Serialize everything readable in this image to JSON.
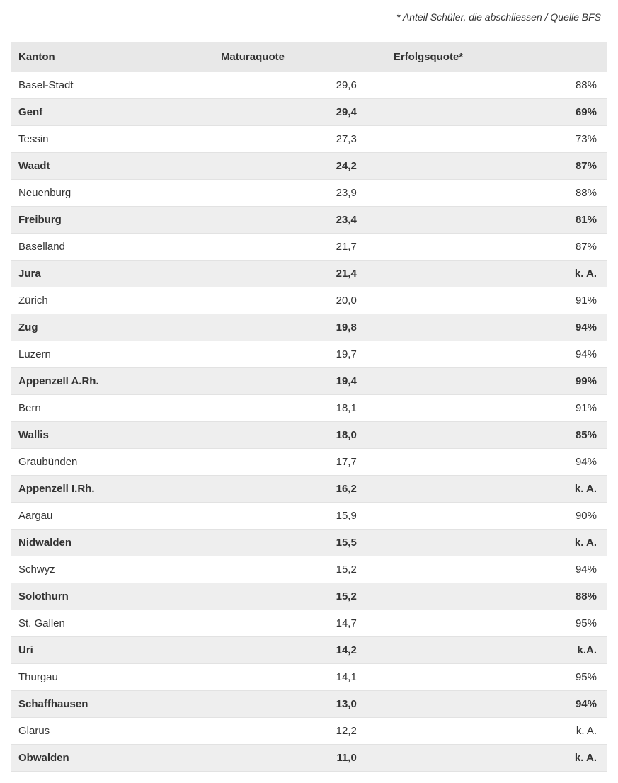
{
  "footnote": "* Anteil Schüler, die abschliessen / Quelle BFS",
  "table": {
    "columns": [
      "Kanton",
      "Maturaquote",
      "Erfolgsquote*"
    ],
    "column_align": [
      "left",
      "right",
      "right"
    ],
    "column_widths_pct": [
      34,
      29,
      37
    ],
    "header_bg": "#e8e8e8",
    "row_bg_odd": "#ffffff",
    "row_bg_even": "#eeeeee",
    "border_color": "#e2e2e2",
    "text_color": "#333333",
    "font_size_pt": 11,
    "rows": [
      {
        "kanton": "Basel-Stadt",
        "matura": "29,6",
        "erfolg": "88%"
      },
      {
        "kanton": "Genf",
        "matura": "29,4",
        "erfolg": "69%"
      },
      {
        "kanton": "Tessin",
        "matura": "27,3",
        "erfolg": "73%"
      },
      {
        "kanton": "Waadt",
        "matura": "24,2",
        "erfolg": "87%"
      },
      {
        "kanton": "Neuenburg",
        "matura": "23,9",
        "erfolg": "88%"
      },
      {
        "kanton": "Freiburg",
        "matura": "23,4",
        "erfolg": "81%"
      },
      {
        "kanton": "Baselland",
        "matura": "21,7",
        "erfolg": "87%"
      },
      {
        "kanton": "Jura",
        "matura": "21,4",
        "erfolg": "k. A."
      },
      {
        "kanton": "Zürich",
        "matura": "20,0",
        "erfolg": "91%"
      },
      {
        "kanton": "Zug",
        "matura": "19,8",
        "erfolg": "94%"
      },
      {
        "kanton": "Luzern",
        "matura": "19,7",
        "erfolg": "94%"
      },
      {
        "kanton": "Appenzell A.Rh.",
        "matura": "19,4",
        "erfolg": "99%"
      },
      {
        "kanton": "Bern",
        "matura": "18,1",
        "erfolg": "91%"
      },
      {
        "kanton": "Wallis",
        "matura": "18,0",
        "erfolg": "85%"
      },
      {
        "kanton": "Graubünden",
        "matura": "17,7",
        "erfolg": "94%"
      },
      {
        "kanton": "Appenzell I.Rh.",
        "matura": "16,2",
        "erfolg": "k. A."
      },
      {
        "kanton": "Aargau",
        "matura": "15,9",
        "erfolg": "90%"
      },
      {
        "kanton": "Nidwalden",
        "matura": "15,5",
        "erfolg": "k. A."
      },
      {
        "kanton": "Schwyz",
        "matura": "15,2",
        "erfolg": "94%"
      },
      {
        "kanton": "Solothurn",
        "matura": "15,2",
        "erfolg": "88%"
      },
      {
        "kanton": "St. Gallen",
        "matura": "14,7",
        "erfolg": "95%"
      },
      {
        "kanton": "Uri",
        "matura": "14,2",
        "erfolg": "k.A."
      },
      {
        "kanton": "Thurgau",
        "matura": "14,1",
        "erfolg": "95%"
      },
      {
        "kanton": "Schaffhausen",
        "matura": "13,0",
        "erfolg": "94%"
      },
      {
        "kanton": "Glarus",
        "matura": "12,2",
        "erfolg": "k. A."
      },
      {
        "kanton": "Obwalden",
        "matura": "11,0",
        "erfolg": "k. A."
      }
    ]
  }
}
